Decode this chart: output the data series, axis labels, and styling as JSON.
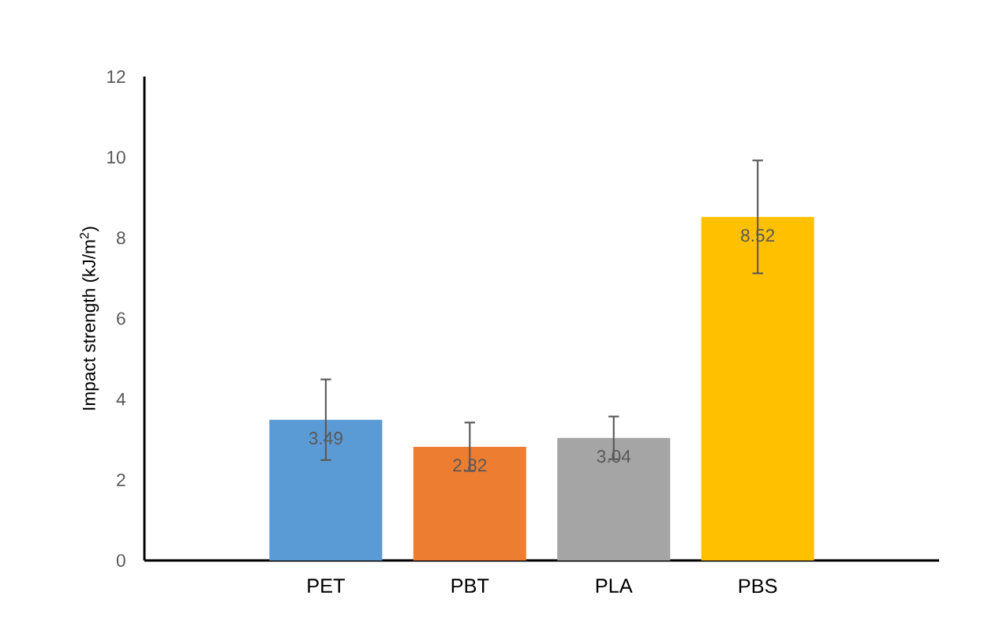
{
  "chart_data": {
    "type": "bar",
    "ylabel": "Impact strength (kJ/m$^{2}$)",
    "categories": [
      "PET",
      "PBT",
      "PLA",
      "PBS"
    ],
    "values": [
      3.49,
      2.82,
      3.04,
      8.52
    ],
    "errors": [
      1.0,
      0.6,
      0.53,
      1.4
    ],
    "colors": [
      "#5b9bd5",
      "#ed7d31",
      "#a5a5a5",
      "#ffc000"
    ],
    "ylim": [
      0,
      12
    ],
    "yticks": [
      0,
      2,
      4,
      6,
      8,
      10,
      12
    ],
    "data_labels": true,
    "grid": false
  }
}
